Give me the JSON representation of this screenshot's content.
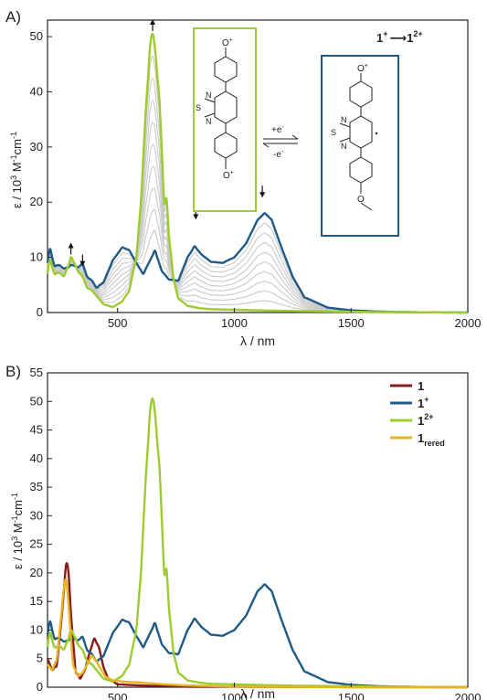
{
  "chart_data": [
    {
      "panel_label": "A)",
      "type": "line",
      "xlabel_symbol": "λ",
      "xlabel_unit": " / nm",
      "ylabel_symbol": "ε",
      "ylabel_unit_prefix": " / 10",
      "ylabel_unit_exp": "3",
      "ylabel_unit_mid": " M",
      "ylabel_unit_exp2": "-1",
      "ylabel_unit_end": "cm",
      "ylabel_unit_exp3": "-1",
      "xlim": [
        200,
        2000
      ],
      "ylim": [
        0,
        53
      ],
      "xticks": [
        "500",
        "1000",
        "1500",
        "2000"
      ],
      "xtick_values": [
        500,
        1000,
        1500,
        2000
      ],
      "yticks": [
        "0",
        "10",
        "20",
        "30",
        "40",
        "50"
      ],
      "ytick_values": [
        0,
        10,
        20,
        30,
        40,
        50
      ],
      "reaction_label": {
        "from": "1",
        "from_sup": "+",
        "to": "1",
        "to_sup": "2+"
      },
      "molecule_left": {
        "top_label": "O",
        "top_sup": "+",
        "bottom_label": "O",
        "bottom_sup": "+",
        "s_label": "S",
        "n1_label": "N",
        "n2_label": "N"
      },
      "molecule_right": {
        "top_label": "O",
        "top_sup": "+",
        "s_label": "S",
        "n1_label": "N",
        "n2_label": "N"
      },
      "equilibrium": {
        "forward": "+e",
        "forward_sup": "-",
        "backward": "-e",
        "backward_sup": "-"
      },
      "arrows": [
        {
          "x": 300,
          "y_tip": 12.5,
          "dir": "up"
        },
        {
          "x": 350,
          "y_tip": 8.5,
          "dir": "down"
        },
        {
          "x": 650,
          "y_tip": 53,
          "dir": "up"
        },
        {
          "x": 835,
          "y_tip": 17,
          "dir": "down"
        },
        {
          "x": 1120,
          "y_tip": 21,
          "dir": "down"
        }
      ],
      "colors": {
        "start": "#1f5a86",
        "end": "#9ccc2e",
        "intermediate": "#c9c9c9"
      },
      "series": [
        {
          "role": "start",
          "x": [
            200,
            210,
            230,
            250,
            270,
            290,
            300,
            315,
            330,
            350,
            370,
            390,
            410,
            440,
            480,
            520,
            550,
            580,
            610,
            640,
            660,
            690,
            720,
            760,
            800,
            830,
            860,
            900,
            950,
            1000,
            1050,
            1100,
            1130,
            1160,
            1200,
            1250,
            1300,
            1400,
            1500,
            1600,
            1700,
            1800,
            1900,
            2000
          ],
          "y": [
            9,
            11.5,
            8.5,
            8.6,
            8,
            8.2,
            8.6,
            8.5,
            8.2,
            8.8,
            6.5,
            5.8,
            4.5,
            5.5,
            9.5,
            11.8,
            11.3,
            9,
            7,
            9.5,
            11.2,
            7.5,
            6,
            5.8,
            10,
            12,
            10.5,
            9.2,
            9,
            10,
            12.5,
            16.8,
            18,
            16.8,
            12,
            6.5,
            2.8,
            0.9,
            0.4,
            0.2,
            0.1,
            0.05,
            0.02,
            0
          ]
        },
        {
          "role": "end",
          "x": [
            200,
            210,
            230,
            250,
            270,
            290,
            300,
            315,
            330,
            350,
            370,
            390,
            410,
            440,
            480,
            520,
            550,
            580,
            600,
            620,
            640,
            650,
            660,
            680,
            700,
            710,
            720,
            740,
            760,
            800,
            850,
            900,
            1000,
            1100,
            1200,
            1400,
            1600,
            1800,
            2000
          ],
          "y": [
            7,
            9.5,
            7,
            7.2,
            6.6,
            8.5,
            10,
            9,
            7.5,
            6.5,
            4.5,
            4,
            3,
            1.5,
            1,
            2,
            4,
            10,
            20,
            36,
            48.5,
            50.5,
            48,
            38,
            20,
            20.5,
            14,
            6,
            2.6,
            1.2,
            0.8,
            0.6,
            0.5,
            0.4,
            0.3,
            0.2,
            0.1,
            0.05,
            0
          ]
        }
      ]
    },
    {
      "panel_label": "B)",
      "type": "line",
      "xlabel_symbol": "λ",
      "xlabel_unit": " / nm",
      "ylabel_symbol": "ε",
      "ylabel_unit_prefix": " / 10",
      "ylabel_unit_exp": "3",
      "ylabel_unit_mid": " M",
      "ylabel_unit_exp2": "-1",
      "ylabel_unit_end": "cm",
      "ylabel_unit_exp3": "-1",
      "xlim": [
        200,
        2000
      ],
      "ylim": [
        0,
        55
      ],
      "xticks": [
        "500",
        "1000",
        "1500",
        "2000"
      ],
      "xtick_values": [
        500,
        1000,
        1500,
        2000
      ],
      "yticks": [
        "0",
        "5",
        "10",
        "15",
        "20",
        "25",
        "30",
        "35",
        "40",
        "45",
        "50",
        "55"
      ],
      "ytick_values": [
        0,
        5,
        10,
        15,
        20,
        25,
        30,
        35,
        40,
        45,
        50,
        55
      ],
      "legend_position": "top-right",
      "series": [
        {
          "name": "1",
          "name_sup": "",
          "name_sub": "",
          "color": "#8b1a1a",
          "x": [
            200,
            220,
            240,
            260,
            280,
            290,
            300,
            320,
            340,
            360,
            380,
            400,
            420,
            440,
            460,
            500,
            600,
            700,
            800,
            900,
            1000,
            1200,
            1500,
            1800,
            2000
          ],
          "y": [
            5,
            3,
            4,
            12,
            21.5,
            20,
            13,
            3,
            1.5,
            3,
            6,
            8.5,
            7,
            3.5,
            1.5,
            0.5,
            0.3,
            0.2,
            0.1,
            0.1,
            0.1,
            0.05,
            0.02,
            0.01,
            0
          ]
        },
        {
          "name": "1",
          "name_sup": "+",
          "name_sub": "",
          "color": "#1f5a86",
          "x": [
            200,
            210,
            230,
            250,
            270,
            290,
            300,
            315,
            330,
            350,
            370,
            390,
            410,
            440,
            480,
            520,
            550,
            580,
            610,
            640,
            660,
            690,
            720,
            760,
            800,
            830,
            860,
            900,
            950,
            1000,
            1050,
            1100,
            1130,
            1160,
            1200,
            1250,
            1300,
            1400,
            1500,
            1600,
            1700,
            1800,
            1900,
            2000
          ],
          "y": [
            9,
            11.5,
            8.5,
            8.6,
            8,
            8.2,
            8.6,
            8.5,
            8.2,
            8.8,
            6.5,
            5.8,
            4.5,
            5.5,
            9.5,
            11.8,
            11.3,
            9,
            7,
            9.5,
            11.2,
            7.5,
            6,
            5.8,
            10,
            12,
            10.5,
            9.2,
            9,
            10,
            12.5,
            16.8,
            18,
            16.8,
            12,
            6.5,
            2.8,
            0.9,
            0.4,
            0.2,
            0.1,
            0.05,
            0.02,
            0
          ]
        },
        {
          "name": "1",
          "name_sup": "2+",
          "name_sub": "",
          "color": "#9ccc2e",
          "x": [
            200,
            210,
            230,
            250,
            270,
            290,
            300,
            315,
            330,
            350,
            370,
            390,
            410,
            440,
            480,
            520,
            550,
            580,
            600,
            620,
            640,
            650,
            660,
            680,
            700,
            710,
            720,
            740,
            760,
            800,
            850,
            900,
            1000,
            1100,
            1200,
            1400,
            1600,
            1800,
            2000
          ],
          "y": [
            7,
            9.5,
            7,
            7.2,
            6.6,
            8.5,
            10,
            9,
            7.5,
            6.5,
            4.5,
            4,
            3,
            1.5,
            1,
            2,
            4,
            10,
            20,
            36,
            48.5,
            50.5,
            48,
            38,
            20,
            20.5,
            14,
            6,
            2.6,
            1.2,
            0.8,
            0.6,
            0.5,
            0.4,
            0.3,
            0.2,
            0.1,
            0.05,
            0
          ]
        },
        {
          "name": "1",
          "name_sup": "",
          "name_sub": "rered",
          "color": "#e6b422",
          "x": [
            200,
            220,
            240,
            260,
            275,
            285,
            295,
            310,
            330,
            350,
            370,
            390,
            410,
            430,
            450,
            480,
            520,
            600,
            700,
            800,
            900,
            1000,
            1200,
            1500,
            1800,
            2000
          ],
          "y": [
            4,
            3,
            5,
            13,
            19.5,
            18,
            11,
            4,
            2,
            2.5,
            4,
            5.5,
            4.5,
            3,
            1.8,
            1.2,
            1,
            0.8,
            0.5,
            0.3,
            0.2,
            0.1,
            0.05,
            0.02,
            0.01,
            0
          ]
        }
      ]
    }
  ]
}
